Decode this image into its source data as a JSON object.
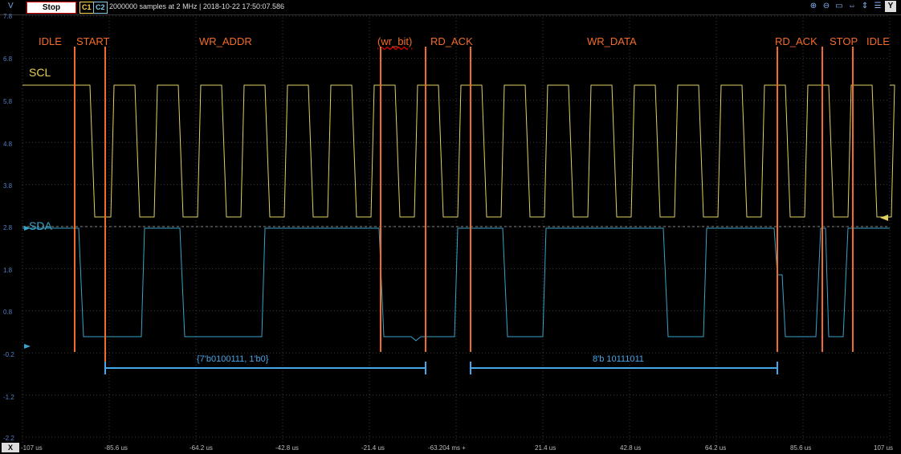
{
  "toolbar": {
    "y_unit": "V",
    "stop_label": "Stop",
    "channel1": "C1",
    "channel2": "C2",
    "status": "2000000 samples at 2 MHz | 2018-10-22 17:50:07.586",
    "tools": [
      "zoom-in-icon",
      "zoom-out-icon",
      "fit-icon",
      "fit-h-icon",
      "fit-v-icon",
      "more-icon"
    ],
    "y_button": "Y",
    "x_button": "X"
  },
  "y_ticks": [
    "7.8",
    "6.8",
    "5.8",
    "4.8",
    "3.8",
    "2.8",
    "1.8",
    "0.8",
    "-0.2",
    "-1.2",
    "-2.2"
  ],
  "x_ticks": [
    "-107 us",
    "-85.6 us",
    "-64.2 us",
    "-42.8 us",
    "-21.4 us",
    "-63.204 ms +",
    "21.4 us",
    "42.8 us",
    "64.2 us",
    "85.6 us",
    "107 us"
  ],
  "channels": {
    "scl_label": "SCL",
    "sda_label": "SDA",
    "scl_color": "#e0d060",
    "sda_color": "#3aa3c8"
  },
  "annotations": {
    "idle_left": "IDLE",
    "start": "START",
    "wr_addr": "WR_ADDR",
    "wr_bit": "(wr_bit)",
    "rd_ack_1": "RD_ACK",
    "wr_data": "WR_DATA",
    "rd_ack_2": "RD_ACK",
    "stop": "STOP",
    "idle_right": "IDLE"
  },
  "bus_labels": {
    "addr": "{7'b0100111, 1'b0}",
    "data": "8'b 10111011"
  },
  "colors": {
    "grid": "#3a3a3a",
    "marker": "#f26b2b",
    "bus": "#46a6e8",
    "background": "#000000"
  }
}
